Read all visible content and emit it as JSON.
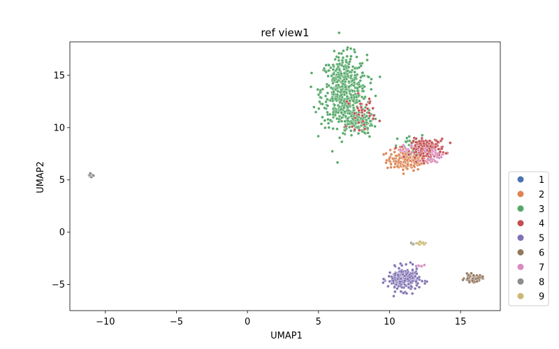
{
  "chart_data": {
    "type": "scatter",
    "title": "ref view1",
    "xlabel": "UMAP1",
    "ylabel": "UMAP2",
    "xlim": [
      -12.5,
      17.8
    ],
    "ylim": [
      -7.5,
      18.2
    ],
    "xticks": [
      -10,
      -5,
      0,
      5,
      10,
      15
    ],
    "yticks": [
      -5,
      0,
      5,
      10,
      15
    ],
    "legend_position": "right-outside-bottom",
    "series": [
      {
        "name": "1",
        "color": "#4C72B0",
        "clusters": [
          {
            "cx": 11.6,
            "cy": -1.15,
            "sx": 0.15,
            "sy": 0.08,
            "n": 5
          }
        ]
      },
      {
        "name": "2",
        "color": "#DD8452",
        "clusters": [
          {
            "cx": 11.2,
            "cy": 6.9,
            "sx": 0.7,
            "sy": 0.5,
            "n": 150
          },
          {
            "cx": 11.8,
            "cy": 7.4,
            "sx": 0.5,
            "sy": 0.4,
            "n": 40
          }
        ]
      },
      {
        "name": "3",
        "color": "#55A868",
        "clusters": [
          {
            "cx": 6.8,
            "cy": 13.5,
            "sx": 0.8,
            "sy": 1.7,
            "n": 520
          },
          {
            "cx": 7.6,
            "cy": 10.6,
            "sx": 0.6,
            "sy": 0.6,
            "n": 130
          },
          {
            "cx": 11.8,
            "cy": 8.2,
            "sx": 0.6,
            "sy": 0.5,
            "n": 35
          }
        ]
      },
      {
        "name": "4",
        "color": "#C44E52",
        "clusters": [
          {
            "cx": 12.7,
            "cy": 8.0,
            "sx": 0.6,
            "sy": 0.45,
            "n": 200
          },
          {
            "cx": 8.0,
            "cy": 11.5,
            "sx": 0.5,
            "sy": 0.8,
            "n": 35
          }
        ]
      },
      {
        "name": "5",
        "color": "#8172B3",
        "clusters": [
          {
            "cx": 11.0,
            "cy": -4.5,
            "sx": 0.55,
            "sy": 0.55,
            "n": 230
          }
        ]
      },
      {
        "name": "6",
        "color": "#937860",
        "clusters": [
          {
            "cx": 15.9,
            "cy": -4.4,
            "sx": 0.3,
            "sy": 0.18,
            "n": 65
          }
        ]
      },
      {
        "name": "7",
        "color": "#DA8BC3",
        "clusters": [
          {
            "cx": 13.1,
            "cy": 7.3,
            "sx": 0.35,
            "sy": 0.4,
            "n": 25
          },
          {
            "cx": 11.0,
            "cy": 8.0,
            "sx": 0.3,
            "sy": 0.2,
            "n": 10
          },
          {
            "cx": 12.2,
            "cy": -3.2,
            "sx": 0.12,
            "sy": 0.05,
            "n": 6
          }
        ]
      },
      {
        "name": "8",
        "color": "#8C8C8C",
        "clusters": [
          {
            "cx": -11.0,
            "cy": 5.45,
            "sx": 0.12,
            "sy": 0.12,
            "n": 18
          }
        ]
      },
      {
        "name": "9",
        "color": "#CCB974",
        "clusters": [
          {
            "cx": 12.1,
            "cy": -1.0,
            "sx": 0.2,
            "sy": 0.08,
            "n": 15
          }
        ]
      }
    ]
  }
}
